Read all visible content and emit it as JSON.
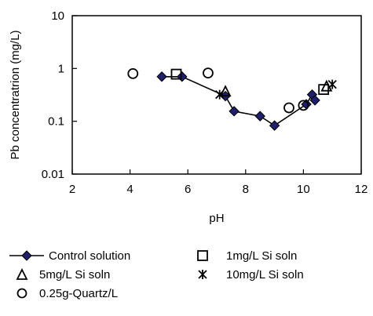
{
  "chart_data": {
    "type": "scatter",
    "xlabel": "pH",
    "ylabel": "Pb concentratrion (mg/L)",
    "xlim": [
      2,
      12
    ],
    "ylim": [
      0.01,
      10
    ],
    "y_scale": "log",
    "x_ticks": [
      "2",
      "4",
      "6",
      "8",
      "10",
      "12"
    ],
    "y_ticks": [
      {
        "value": 10,
        "label": "10"
      },
      {
        "value": 1,
        "label": "1"
      },
      {
        "value": 0.1,
        "label": "0.1"
      },
      {
        "value": 0.01,
        "label": "0.01"
      }
    ],
    "grid": false,
    "legend_position": "bottom",
    "series": [
      {
        "name": "Control solution",
        "marker": "diamond-filled",
        "line": true,
        "color": "#1f1f6b",
        "points": [
          {
            "x": 5.1,
            "y": 0.7
          },
          {
            "x": 5.8,
            "y": 0.7
          },
          {
            "x": 7.3,
            "y": 0.3
          },
          {
            "x": 7.6,
            "y": 0.155
          },
          {
            "x": 8.5,
            "y": 0.125
          },
          {
            "x": 9.0,
            "y": 0.083
          },
          {
            "x": 10.1,
            "y": 0.21
          },
          {
            "x": 10.3,
            "y": 0.32
          },
          {
            "x": 10.4,
            "y": 0.25
          }
        ]
      },
      {
        "name": "1mg/L Si soln",
        "marker": "square-open",
        "line": false,
        "color": "#000000",
        "points": [
          {
            "x": 5.6,
            "y": 0.78
          },
          {
            "x": 10.7,
            "y": 0.4
          }
        ]
      },
      {
        "name": "5mg/L Si soln",
        "marker": "triangle-open",
        "line": false,
        "color": "#000000",
        "points": [
          {
            "x": 7.3,
            "y": 0.36
          },
          {
            "x": 10.8,
            "y": 0.45
          }
        ]
      },
      {
        "name": "10mg/L Si soln",
        "marker": "asterisk",
        "line": false,
        "color": "#000000",
        "points": [
          {
            "x": 7.1,
            "y": 0.32
          },
          {
            "x": 11.0,
            "y": 0.5
          }
        ]
      },
      {
        "name": "0.25g-Quartz/L",
        "marker": "circle-open",
        "line": false,
        "color": "#000000",
        "points": [
          {
            "x": 4.1,
            "y": 0.8
          },
          {
            "x": 6.7,
            "y": 0.82
          },
          {
            "x": 9.5,
            "y": 0.18
          },
          {
            "x": 10.0,
            "y": 0.2
          }
        ]
      }
    ]
  }
}
